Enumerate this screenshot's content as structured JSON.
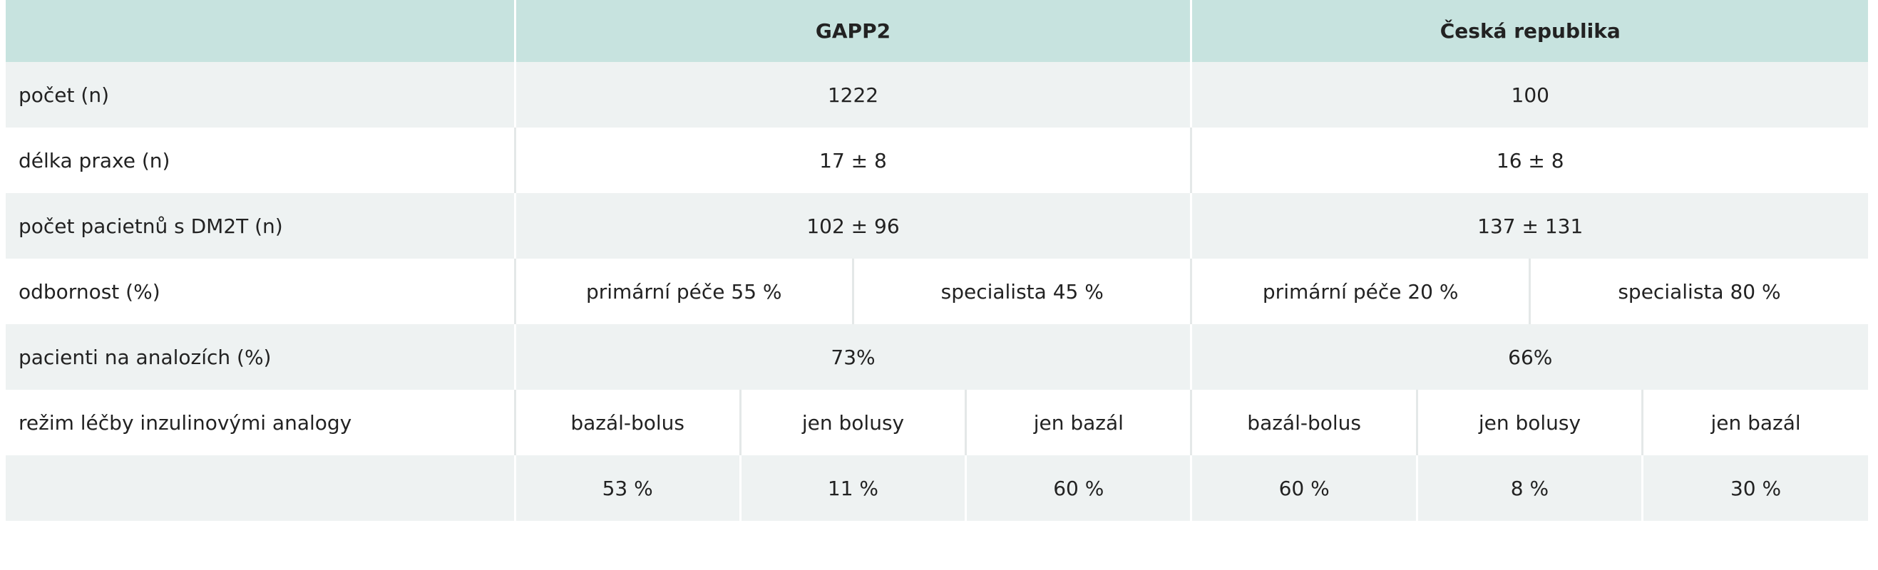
{
  "table": {
    "header": [
      "GAPP2",
      "Česká republika"
    ],
    "rows": [
      {
        "label": "počet (n)",
        "cells": [
          "1222",
          "100"
        ]
      },
      {
        "label": "délka praxe (n)",
        "cells": [
          "17 ± 8",
          "16 ± 8"
        ]
      },
      {
        "label": "počet pacietnů s DM2T (n)",
        "cells": [
          "102 ± 96",
          "137 ± 131"
        ]
      },
      {
        "label": "odbornost (%)",
        "cells": [
          "primární péče 55 %",
          "specialista 45 %",
          "primární péče 20 %",
          "specialista 80 %"
        ]
      },
      {
        "label": "pacienti na analozích (%)",
        "cells": [
          "73%",
          "66%"
        ]
      },
      {
        "label": "režim léčby inzulinovými analogy",
        "cells": [
          "bazál-bolus",
          "jen bolusy",
          "jen bazál",
          "bazál-bolus",
          "jen bolusy",
          "jen bazál"
        ]
      },
      {
        "label": null,
        "cells": [
          "53 %",
          "11 %",
          "60 %",
          "60 %",
          "8 %",
          "30 %"
        ]
      }
    ]
  }
}
